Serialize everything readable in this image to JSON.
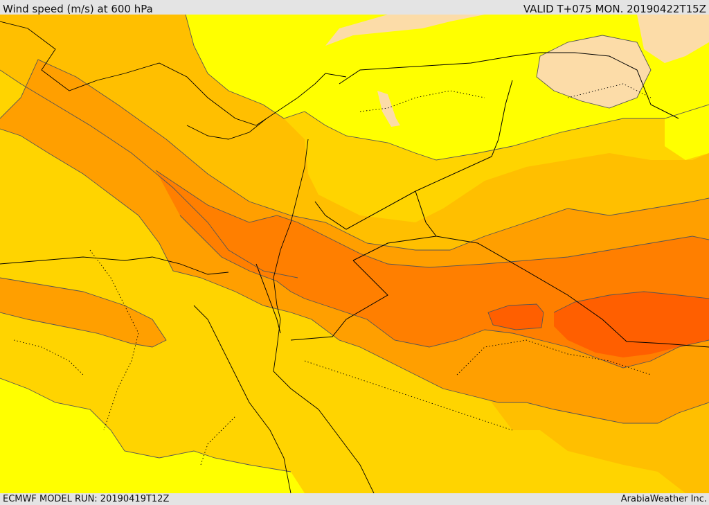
{
  "header": {
    "title": "Wind speed (m/s) at 600 hPa",
    "valid": "VALID T+075 MON. 20190422T15Z"
  },
  "footer": {
    "model_run": "ECMWF MODEL RUN: 20190419T12Z",
    "credit": "ArabiaWeather Inc."
  },
  "map": {
    "fill_colors": {
      "pale": "#fcdca8",
      "yellow": "#ffff00",
      "yellow_orange": "#ffdd00",
      "light_orange": "#ffbf00",
      "orange": "#ff9f00",
      "dark_orange": "#ff7f00",
      "red_orange": "#ff5f00"
    },
    "line_colors": {
      "contour": "#555555",
      "border": "#000000"
    }
  }
}
